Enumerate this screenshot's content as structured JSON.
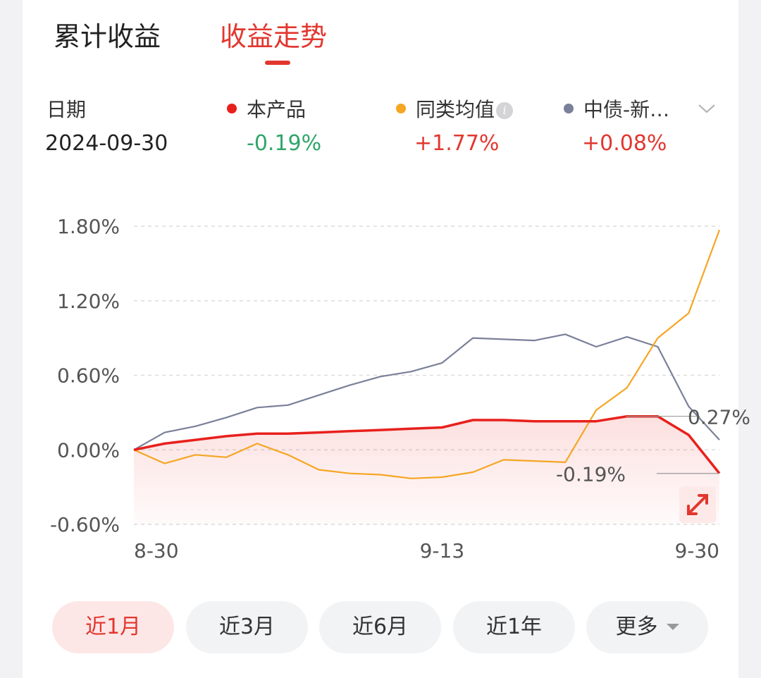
{
  "tabs": [
    {
      "label": "累计收益",
      "active": false
    },
    {
      "label": "收益走势",
      "active": true
    }
  ],
  "legend": {
    "date_label": "日期",
    "date_value": "2024-09-30",
    "series": [
      {
        "name": "本产品",
        "value": "-0.19%",
        "dot_color": "#e8201c",
        "value_color": "#2fa66a"
      },
      {
        "name": "同类均值",
        "value": "+1.77%",
        "dot_color": "#f5a623",
        "value_color": "#e2372f",
        "info_icon": "info-icon"
      },
      {
        "name": "中债-新…",
        "value": "+0.08%",
        "dot_color": "#7a8099",
        "value_color": "#e2372f"
      }
    ],
    "expand_icon": "chevron-down-icon"
  },
  "chart_data": {
    "type": "line",
    "ylim": [
      -0.6,
      1.8
    ],
    "ytick_labels": [
      "1.80%",
      "1.20%",
      "0.60%",
      "0.00%",
      "-0.60%"
    ],
    "yticks": [
      1.8,
      1.2,
      0.6,
      0.0,
      -0.6
    ],
    "x_tick_labels": [
      {
        "index": 0,
        "label": "8-30"
      },
      {
        "index": 10,
        "label": "9-13"
      },
      {
        "index": 19,
        "label": "9-30"
      }
    ],
    "series": [
      {
        "name": "本产品",
        "color": "#e8201c",
        "area": true,
        "values": [
          0.0,
          0.05,
          0.08,
          0.11,
          0.13,
          0.13,
          0.14,
          0.15,
          0.16,
          0.17,
          0.18,
          0.24,
          0.24,
          0.23,
          0.23,
          0.23,
          0.27,
          0.27,
          0.12,
          -0.19
        ]
      },
      {
        "name": "同类均值",
        "color": "#f5a623",
        "values": [
          0.0,
          -0.11,
          -0.04,
          -0.06,
          0.05,
          -0.04,
          -0.16,
          -0.19,
          -0.2,
          -0.23,
          -0.22,
          -0.18,
          -0.08,
          -0.09,
          -0.1,
          0.32,
          0.5,
          0.9,
          1.1,
          1.77
        ]
      },
      {
        "name": "中债-新…",
        "color": "#7a8099",
        "values": [
          0.0,
          0.14,
          0.19,
          0.26,
          0.34,
          0.36,
          0.44,
          0.52,
          0.59,
          0.63,
          0.7,
          0.9,
          0.89,
          0.88,
          0.93,
          0.83,
          0.91,
          0.83,
          0.35,
          0.08
        ]
      }
    ],
    "annotations": [
      {
        "text": "0.27%",
        "index": 17,
        "value": 0.27
      },
      {
        "text": "-0.19%",
        "index": 19,
        "value": -0.19
      }
    ],
    "grid": true
  },
  "expand_chart_icon": "expand-arrows-icon",
  "ranges": [
    {
      "label": "近1月",
      "active": true
    },
    {
      "label": "近3月",
      "active": false
    },
    {
      "label": "近6月",
      "active": false
    },
    {
      "label": "近1年",
      "active": false
    },
    {
      "label": "更多",
      "active": false,
      "dropdown": true
    }
  ]
}
